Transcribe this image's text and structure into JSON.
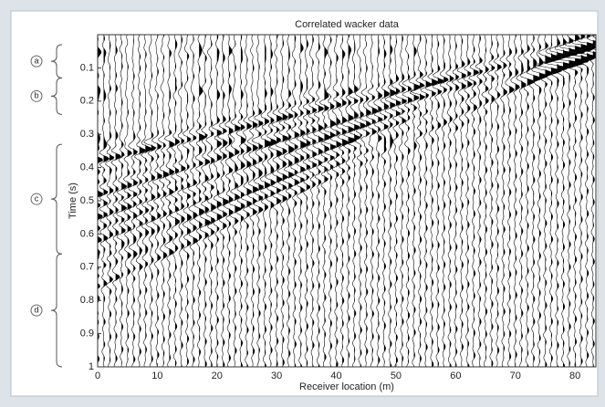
{
  "chart_data": {
    "type": "wiggle",
    "title": "Correlated wacker data",
    "xlabel": "Receiver location (m)",
    "ylabel": "Time (s)",
    "xlim": [
      0,
      83.5
    ],
    "xticks": [
      0,
      10,
      20,
      30,
      40,
      50,
      60,
      70,
      80
    ],
    "ylim": [
      0,
      1
    ],
    "yticks": [
      0.1,
      0.2,
      0.3,
      0.4,
      0.5,
      0.6,
      0.7,
      0.8,
      0.9,
      1
    ],
    "annotations": [
      {
        "label": "a",
        "range": [
          0.03,
          0.13
        ]
      },
      {
        "label": "b",
        "range": [
          0.13,
          0.24
        ]
      },
      {
        "label": "c",
        "range": [
          0.33,
          0.66
        ]
      },
      {
        "label": "d",
        "range": [
          0.66,
          1
        ]
      }
    ]
  }
}
